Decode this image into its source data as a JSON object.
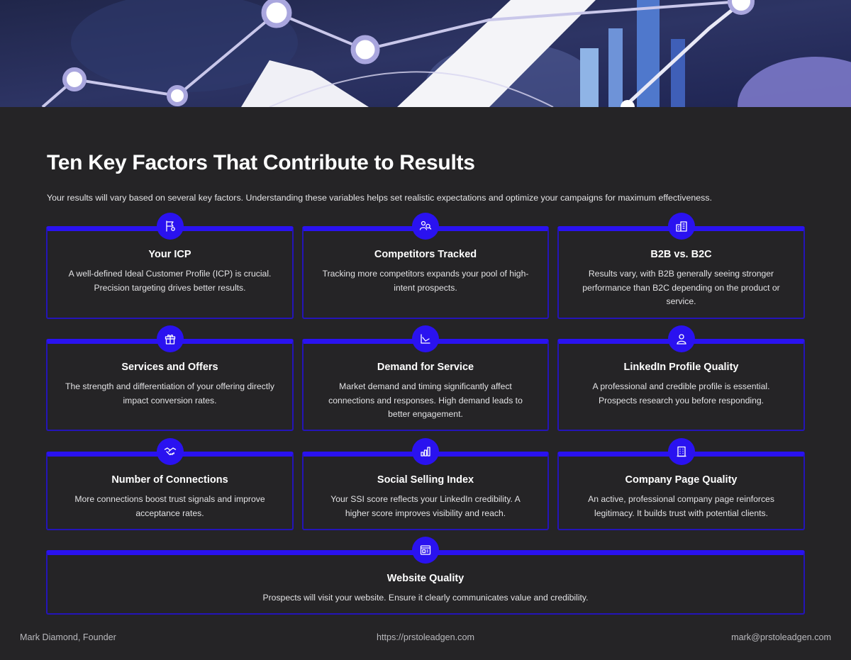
{
  "header": {
    "title": "Ten Key Factors That Contribute to Results",
    "intro": "Your results will vary based on several key factors. Understanding these variables helps set realistic expectations and optimize your campaigns for maximum effectiveness."
  },
  "factors": [
    {
      "title": "Your ICP",
      "text": "A well-defined Ideal Customer Profile (ICP) is crucial. Precision targeting drives better results.",
      "icon": "target-flag-icon"
    },
    {
      "title": "Competitors Tracked",
      "text": "Tracking more competitors expands your pool of high-intent prospects.",
      "icon": "users-search-icon"
    },
    {
      "title": "B2B vs. B2C",
      "text": "Results vary, with B2B generally seeing stronger performance than B2C depending on the product or service.",
      "icon": "buildings-icon"
    },
    {
      "title": "Services and Offers",
      "text": "The strength and differentiation of your offering directly impact conversion rates.",
      "icon": "gift-icon"
    },
    {
      "title": "Demand for Service",
      "text": "Market demand and timing significantly affect connections and responses. High demand leads to better engagement.",
      "icon": "trend-chart-icon"
    },
    {
      "title": "LinkedIn Profile Quality",
      "text": "A professional and credible profile is essential. Prospects research you before responding.",
      "icon": "user-profile-icon"
    },
    {
      "title": "Number of Connections",
      "text": "More connections boost trust signals and improve acceptance rates.",
      "icon": "handshake-icon"
    },
    {
      "title": "Social Selling Index",
      "text": "Your SSI score reflects your LinkedIn credibility. A higher score improves visibility and reach.",
      "icon": "bar-chart-icon"
    },
    {
      "title": "Company Page Quality",
      "text": "An active, professional company page reinforces legitimacy. It builds trust with potential clients.",
      "icon": "company-building-icon"
    },
    {
      "title": "Website Quality",
      "text": "Prospects will visit your website. Ensure it clearly communicates value and credibility.",
      "icon": "website-icon"
    }
  ],
  "footer": {
    "author": "Mark Diamond, Founder",
    "url": "https://prstoleadgen.com",
    "email": "mark@prstoleadgen.com"
  },
  "colors": {
    "background": "#252426",
    "accent": "#2a12f0",
    "card_border": "#2414b8"
  }
}
